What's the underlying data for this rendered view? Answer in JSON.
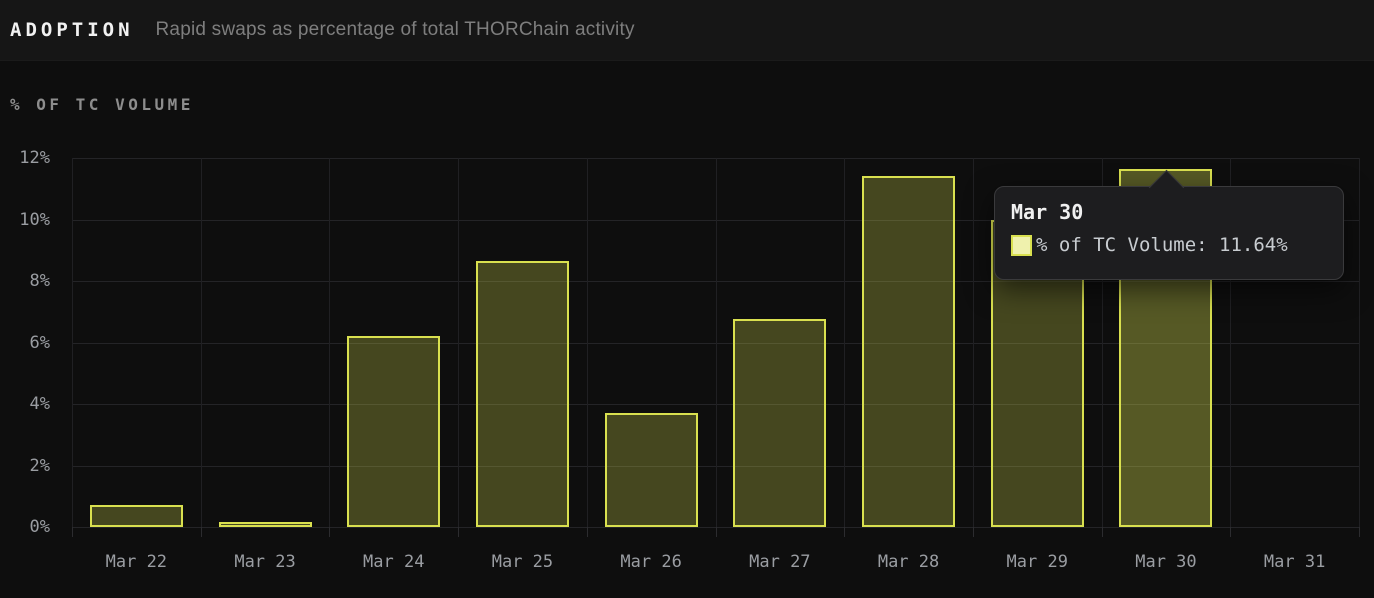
{
  "header": {
    "title": "ADOPTION",
    "subtitle": "Rapid swaps as percentage of total THORChain activity"
  },
  "axis_title": "% OF TC VOLUME",
  "tooltip": {
    "title": "Mar 30",
    "series_label": "% of TC Volume: ",
    "value": "11.64%",
    "swatch_fill": "#eff1ad",
    "swatch_border": "#d9e04f"
  },
  "chart_data": {
    "type": "bar",
    "title": "ADOPTION — Rapid swaps as percentage of total THORChain activity",
    "xlabel": "",
    "ylabel": "% OF TC VOLUME",
    "categories": [
      "Mar 22",
      "Mar 23",
      "Mar 24",
      "Mar 25",
      "Mar 26",
      "Mar 27",
      "Mar 28",
      "Mar 29",
      "Mar 30",
      "Mar 31"
    ],
    "values": [
      0.72,
      0.16,
      6.2,
      8.65,
      3.7,
      6.75,
      11.4,
      10.0,
      11.64,
      null
    ],
    "ylim": [
      0,
      12
    ],
    "ytick_values": [
      0,
      2,
      4,
      6,
      8,
      10,
      12
    ],
    "ytick_labels": [
      "0%",
      "2%",
      "4%",
      "6%",
      "8%",
      "10%",
      "12%"
    ],
    "grid": true,
    "legend": "hidden (single series shown in tooltip)",
    "series_name": "% of TC Volume",
    "highlighted_index": 8,
    "highlighted_value_label": "11.64%",
    "bar_border_color": "#d9e04f",
    "bar_fill_color": "rgba(217,224,79,0.27)",
    "notes": "Mar 29 bar top is hidden behind the tooltip; its value is estimated. Mar 31 has no bar."
  }
}
